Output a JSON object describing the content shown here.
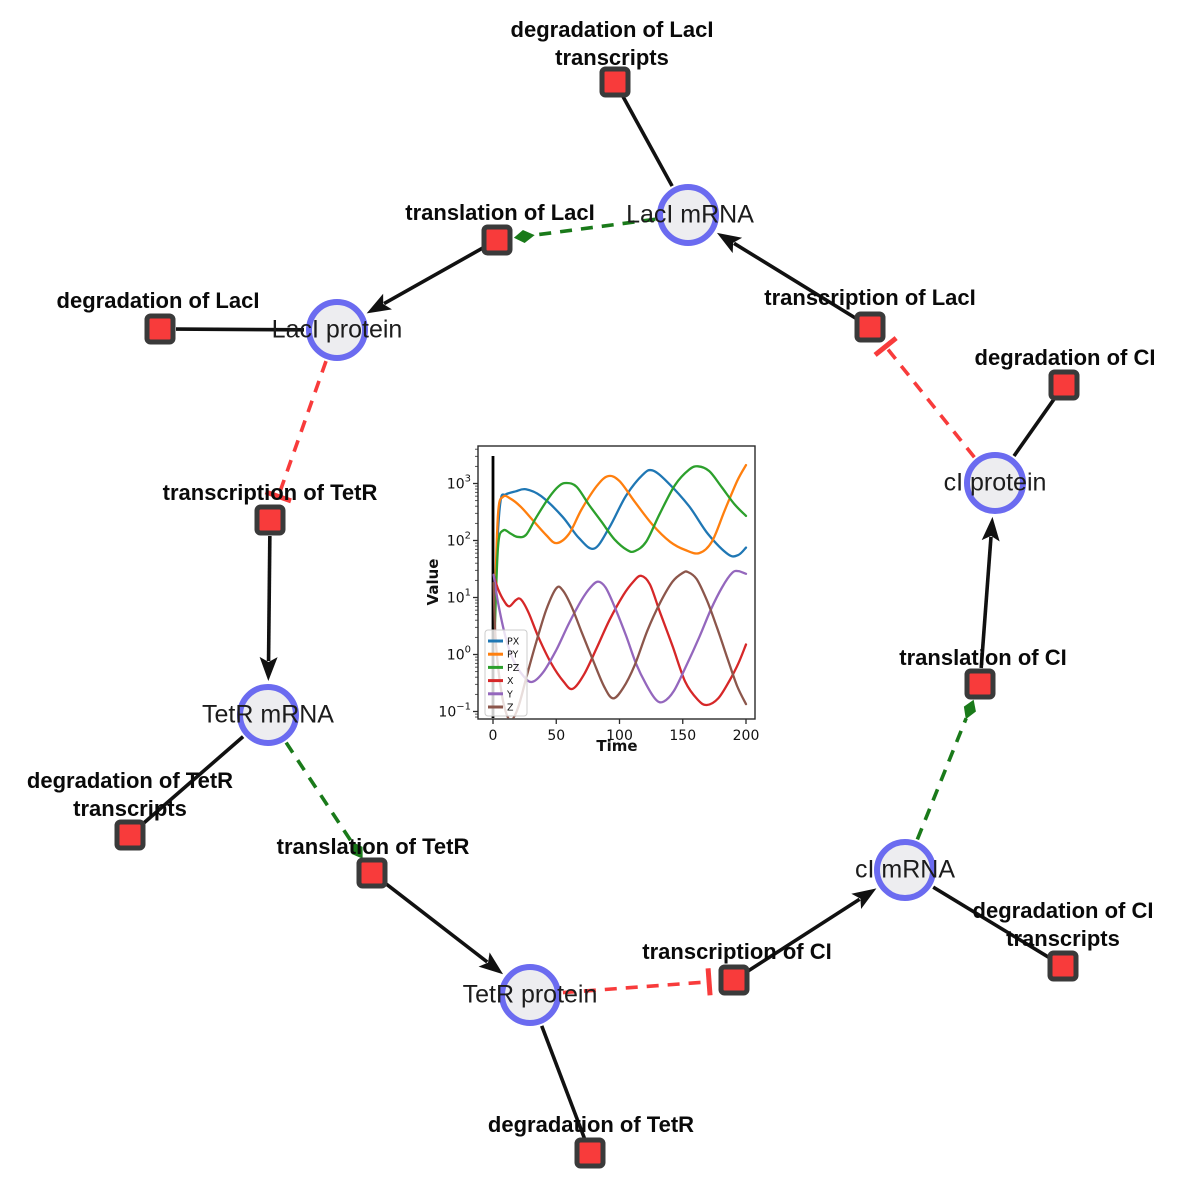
{
  "diagram": {
    "species": [
      {
        "id": "laci_mrna",
        "label": "LacI mRNA"
      },
      {
        "id": "laci_protein",
        "label": "LacI protein"
      },
      {
        "id": "tetr_mrna",
        "label": "TetR mRNA"
      },
      {
        "id": "tetr_protein",
        "label": "TetR protein"
      },
      {
        "id": "ci_mrna",
        "label": "cI mRNA"
      },
      {
        "id": "ci_protein",
        "label": "cI protein"
      }
    ],
    "reactions": [
      {
        "id": "deg_laci_tx",
        "lines": [
          "degradation of LacI",
          "transcripts"
        ]
      },
      {
        "id": "transl_laci",
        "lines": [
          "translation of LacI"
        ]
      },
      {
        "id": "deg_laci",
        "lines": [
          "degradation of LacI"
        ]
      },
      {
        "id": "txn_laci",
        "lines": [
          "transcription of LacI"
        ]
      },
      {
        "id": "deg_ci",
        "lines": [
          "degradation of CI"
        ]
      },
      {
        "id": "txn_tetr",
        "lines": [
          "transcription of TetR"
        ]
      },
      {
        "id": "deg_tetr_tx",
        "lines": [
          "degradation of TetR",
          "transcripts"
        ]
      },
      {
        "id": "transl_tetr",
        "lines": [
          "translation of TetR"
        ]
      },
      {
        "id": "deg_tetr",
        "lines": [
          "degradation of TetR"
        ]
      },
      {
        "id": "txn_ci",
        "lines": [
          "transcription of CI"
        ]
      },
      {
        "id": "deg_ci_tx",
        "lines": [
          "degradation of CI",
          "transcripts"
        ]
      },
      {
        "id": "transl_ci",
        "lines": [
          "translation of CI"
        ]
      }
    ],
    "edges": [
      {
        "from": "laci_mrna",
        "to": "deg_laci_tx",
        "type": "line"
      },
      {
        "from": "laci_mrna",
        "to": "transl_laci",
        "type": "stimulation"
      },
      {
        "from": "transl_laci",
        "to": "laci_protein",
        "type": "arrow"
      },
      {
        "from": "laci_protein",
        "to": "deg_laci",
        "type": "line"
      },
      {
        "from": "laci_protein",
        "to": "txn_tetr",
        "type": "inhibition"
      },
      {
        "from": "txn_tetr",
        "to": "tetr_mrna",
        "type": "arrow"
      },
      {
        "from": "tetr_mrna",
        "to": "deg_tetr_tx",
        "type": "line"
      },
      {
        "from": "tetr_mrna",
        "to": "transl_tetr",
        "type": "stimulation"
      },
      {
        "from": "transl_tetr",
        "to": "tetr_protein",
        "type": "arrow"
      },
      {
        "from": "tetr_protein",
        "to": "deg_tetr",
        "type": "line"
      },
      {
        "from": "tetr_protein",
        "to": "txn_ci",
        "type": "inhibition"
      },
      {
        "from": "txn_ci",
        "to": "ci_mrna",
        "type": "arrow"
      },
      {
        "from": "ci_mrna",
        "to": "deg_ci_tx",
        "type": "line"
      },
      {
        "from": "ci_mrna",
        "to": "transl_ci",
        "type": "stimulation"
      },
      {
        "from": "transl_ci",
        "to": "ci_protein",
        "type": "arrow"
      },
      {
        "from": "ci_protein",
        "to": "deg_ci",
        "type": "line"
      },
      {
        "from": "ci_protein",
        "to": "txn_laci",
        "type": "inhibition"
      },
      {
        "from": "txn_laci",
        "to": "laci_mrna",
        "type": "arrow"
      }
    ],
    "colors": {
      "species_fill": "#ededf0",
      "species_border": "#6b6bf0",
      "reaction_fill": "#f83b3b",
      "reaction_border": "#3a3a3a",
      "edge_black": "#111111",
      "edge_green": "#1a7a1a",
      "edge_red": "#f83b3b"
    }
  },
  "chart_data": {
    "type": "line",
    "title": "",
    "xlabel": "Time",
    "ylabel": "Value",
    "xlim": [
      -10,
      208
    ],
    "xticks": [
      0,
      50,
      100,
      150,
      200
    ],
    "yscale": "log",
    "ytick_exponents": [
      -1,
      0,
      1,
      2,
      3
    ],
    "ylim_log": [
      -1.13,
      3.66
    ],
    "legend_position": "lower left",
    "annotations": [
      {
        "type": "vline",
        "x": 0,
        "color": "#000000"
      }
    ],
    "series": [
      {
        "name": "PX",
        "color": "#1f77b4",
        "points": [
          [
            1.5,
            5
          ],
          [
            3,
            60
          ],
          [
            6,
            500
          ],
          [
            10,
            640
          ],
          [
            18,
            730
          ],
          [
            26,
            790
          ],
          [
            38,
            600
          ],
          [
            55,
            260
          ],
          [
            68,
            110
          ],
          [
            80,
            72
          ],
          [
            92,
            170
          ],
          [
            105,
            600
          ],
          [
            118,
            1400
          ],
          [
            126,
            1700
          ],
          [
            138,
            1050
          ],
          [
            155,
            400
          ],
          [
            170,
            130
          ],
          [
            186,
            57
          ],
          [
            194,
            56
          ],
          [
            200,
            75
          ]
        ]
      },
      {
        "name": "PY",
        "color": "#ff7f0e",
        "points": [
          [
            1.5,
            8
          ],
          [
            4,
            300
          ],
          [
            8,
            585
          ],
          [
            14,
            540
          ],
          [
            22,
            390
          ],
          [
            32,
            220
          ],
          [
            42,
            125
          ],
          [
            50,
            90
          ],
          [
            60,
            130
          ],
          [
            70,
            350
          ],
          [
            82,
            900
          ],
          [
            91,
            1350
          ],
          [
            100,
            1100
          ],
          [
            112,
            480
          ],
          [
            126,
            190
          ],
          [
            140,
            95
          ],
          [
            152,
            68
          ],
          [
            163,
            60
          ],
          [
            173,
            95
          ],
          [
            183,
            330
          ],
          [
            193,
            1100
          ],
          [
            200,
            2100
          ]
        ]
      },
      {
        "name": "PZ",
        "color": "#2ca02c",
        "points": [
          [
            1.5,
            3
          ],
          [
            4,
            80
          ],
          [
            8,
            150
          ],
          [
            14,
            132
          ],
          [
            19,
            116
          ],
          [
            26,
            125
          ],
          [
            34,
            250
          ],
          [
            44,
            560
          ],
          [
            52,
            900
          ],
          [
            58,
            1020
          ],
          [
            66,
            880
          ],
          [
            76,
            420
          ],
          [
            86,
            210
          ],
          [
            96,
            105
          ],
          [
            106,
            68
          ],
          [
            112,
            65
          ],
          [
            121,
            95
          ],
          [
            132,
            300
          ],
          [
            144,
            950
          ],
          [
            155,
            1750
          ],
          [
            162,
            2000
          ],
          [
            171,
            1650
          ],
          [
            181,
            850
          ],
          [
            191,
            430
          ],
          [
            200,
            270
          ]
        ]
      },
      {
        "name": "X",
        "color": "#d62728",
        "points": [
          [
            0.5,
            25
          ],
          [
            4,
            14
          ],
          [
            9,
            8.5
          ],
          [
            13,
            7
          ],
          [
            18,
            9
          ],
          [
            22,
            9.3
          ],
          [
            28,
            5.5
          ],
          [
            36,
            2
          ],
          [
            46,
            0.7
          ],
          [
            56,
            0.33
          ],
          [
            63,
            0.25
          ],
          [
            72,
            0.45
          ],
          [
            82,
            1.3
          ],
          [
            92,
            4
          ],
          [
            103,
            11
          ],
          [
            111,
            19
          ],
          [
            117,
            24
          ],
          [
            124,
            17
          ],
          [
            132,
            5.5
          ],
          [
            142,
            1.4
          ],
          [
            152,
            0.33
          ],
          [
            162,
            0.16
          ],
          [
            169,
            0.13
          ],
          [
            178,
            0.17
          ],
          [
            187,
            0.35
          ],
          [
            194,
            0.7
          ],
          [
            200,
            1.5
          ]
        ]
      },
      {
        "name": "Y",
        "color": "#9467bd",
        "points": [
          [
            0.5,
            25
          ],
          [
            4,
            8
          ],
          [
            10,
            2
          ],
          [
            16,
            0.8
          ],
          [
            24,
            0.42
          ],
          [
            31,
            0.33
          ],
          [
            40,
            0.5
          ],
          [
            50,
            1.2
          ],
          [
            60,
            3.5
          ],
          [
            70,
            9
          ],
          [
            77,
            15
          ],
          [
            83,
            19
          ],
          [
            89,
            15
          ],
          [
            96,
            7
          ],
          [
            105,
            2.2
          ],
          [
            113,
            0.7
          ],
          [
            121,
            0.3
          ],
          [
            129,
            0.16
          ],
          [
            135,
            0.15
          ],
          [
            143,
            0.23
          ],
          [
            153,
            0.65
          ],
          [
            163,
            2
          ],
          [
            172,
            6
          ],
          [
            181,
            15
          ],
          [
            189,
            27
          ],
          [
            194,
            29
          ],
          [
            200,
            26
          ]
        ]
      },
      {
        "name": "Z",
        "color": "#8c564b",
        "points": [
          [
            0.5,
            18
          ],
          [
            2,
            2
          ],
          [
            5,
            0.4
          ],
          [
            9,
            0.12
          ],
          [
            14,
            0.07
          ],
          [
            20,
            0.12
          ],
          [
            27,
            0.45
          ],
          [
            34,
            1.6
          ],
          [
            42,
            6
          ],
          [
            50,
            14.5
          ],
          [
            55,
            13.5
          ],
          [
            62,
            7
          ],
          [
            70,
            2.5
          ],
          [
            79,
            0.8
          ],
          [
            88,
            0.27
          ],
          [
            95,
            0.17
          ],
          [
            103,
            0.26
          ],
          [
            112,
            0.65
          ],
          [
            122,
            2.6
          ],
          [
            132,
            8
          ],
          [
            142,
            19
          ],
          [
            150,
            27
          ],
          [
            154,
            28
          ],
          [
            161,
            21
          ],
          [
            169,
            9
          ],
          [
            177,
            3
          ],
          [
            185,
            0.9
          ],
          [
            193,
            0.28
          ],
          [
            200,
            0.135
          ]
        ]
      }
    ]
  }
}
